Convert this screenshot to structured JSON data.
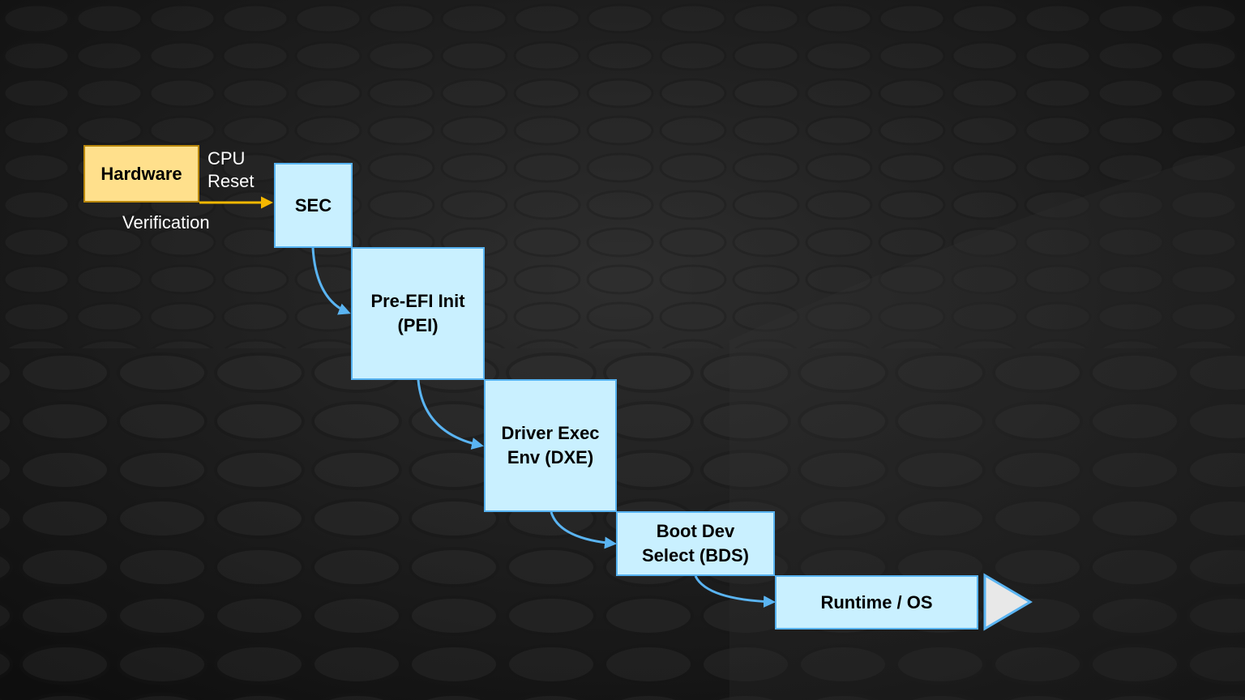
{
  "hardware": {
    "label": "Hardware"
  },
  "labels": {
    "cpu_reset": "CPU\nReset",
    "verification": "Verification"
  },
  "stages": [
    {
      "label": "SEC"
    },
    {
      "label": "Pre-EFI Init\n(PEI)"
    },
    {
      "label": "Driver Exec\nEnv (DXE)"
    },
    {
      "label": "Boot Dev\nSelect (BDS)"
    },
    {
      "label": "Runtime / OS"
    }
  ],
  "colors": {
    "background": "#1c1c1c",
    "stage_fill": "#c9f0ff",
    "stage_border": "#56b2f0",
    "hardware_fill": "#ffe08c",
    "hardware_border": "#b8860b",
    "reset_arrow": "#f5b800",
    "flow_arrow": "#5ab4f2",
    "end_arrow": "#e8e8e8"
  },
  "icons": {
    "continuation": "triangle-arrow-right-icon"
  }
}
